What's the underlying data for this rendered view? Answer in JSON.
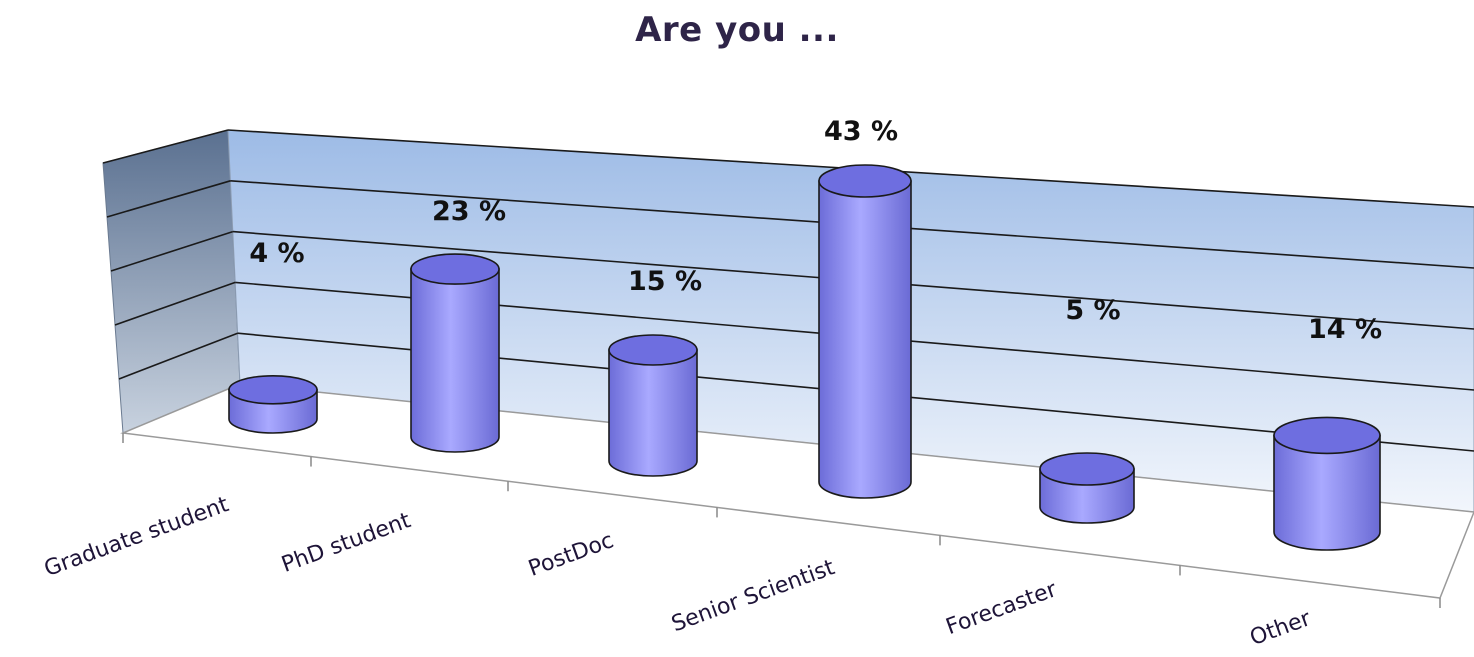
{
  "chart_data": {
    "type": "bar",
    "style": "3d-cylinder",
    "title": "Are you ...",
    "categories": [
      "Graduate student",
      "PhD student",
      "PostDoc",
      "Senior Scientist",
      "Forecaster",
      "Other"
    ],
    "values": [
      4,
      23,
      15,
      43,
      5,
      14
    ],
    "data_labels": [
      "4 %",
      "23 %",
      "15 %",
      "43 %",
      "5 %",
      "14 %"
    ],
    "unit": "%",
    "ylim": [
      0,
      50
    ],
    "grid": true,
    "legend": "none",
    "colors": {
      "bar": "#8c8cf0",
      "bar_top": "#6e6ee0",
      "bar_outline": "#1a1a1a",
      "back_wall_top": "#9dbbe6",
      "back_wall_bottom": "#f2f6fc",
      "side_wall_top": "#5a7090",
      "side_wall_bottom": "#c8d2df",
      "title": "#2e2448",
      "category_text": "#1e1438"
    }
  }
}
